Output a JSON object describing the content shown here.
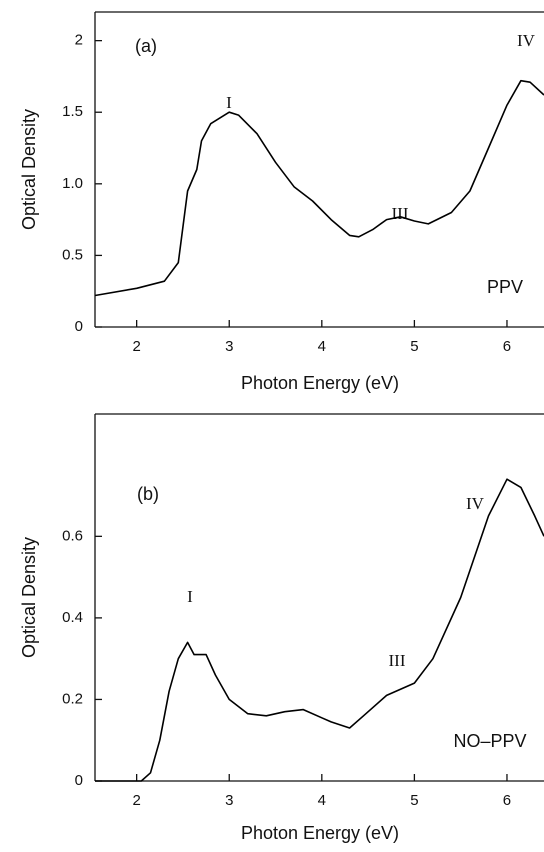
{
  "chart_data": [
    {
      "type": "line",
      "x_label": "Photon Energy (eV)",
      "y_label": "Optical Density",
      "xlim": [
        1.55,
        6.4
      ],
      "xticks": [
        2,
        3,
        4,
        5,
        6
      ],
      "ylim": [
        0,
        2.2
      ],
      "yticks": [
        0,
        0.5,
        {
          "value": 1,
          "label": "1.0"
        },
        1.5,
        2
      ],
      "annotations": [
        "(a)",
        "I",
        "III",
        "IV",
        "PPV"
      ],
      "series": [
        {
          "color": "#000000",
          "x": [
            1.55,
            2.0,
            2.3,
            2.45,
            2.52,
            2.55,
            2.65,
            2.7,
            2.8,
            3.0,
            3.1,
            3.3,
            3.5,
            3.7,
            3.9,
            4.1,
            4.3,
            4.4,
            4.55,
            4.7,
            4.85,
            5.0,
            5.15,
            5.4,
            5.6,
            5.8,
            6.0,
            6.15,
            6.25,
            6.4
          ],
          "values": [
            0.22,
            0.27,
            0.32,
            0.45,
            0.8,
            0.95,
            1.1,
            1.3,
            1.42,
            1.5,
            1.48,
            1.35,
            1.15,
            0.98,
            0.88,
            0.75,
            0.64,
            0.63,
            0.68,
            0.75,
            0.77,
            0.74,
            0.72,
            0.8,
            0.95,
            1.25,
            1.55,
            1.72,
            1.71,
            1.62
          ]
        }
      ]
    },
    {
      "type": "line",
      "x_label": "Photon Energy (eV)",
      "y_label": "Optical Density",
      "xlim": [
        1.55,
        6.4
      ],
      "xticks": [
        2,
        3,
        4,
        5,
        6
      ],
      "ylim": [
        0,
        0.9
      ],
      "yticks": [
        0,
        0.2,
        0.4,
        0.6
      ],
      "annotations": [
        "(b)",
        "I",
        "III",
        "IV",
        "NO–PPV"
      ],
      "series": [
        {
          "color": "#000000",
          "x": [
            1.55,
            2.05,
            2.15,
            2.25,
            2.35,
            2.45,
            2.55,
            2.62,
            2.75,
            2.85,
            3.0,
            3.2,
            3.4,
            3.6,
            3.8,
            4.0,
            4.1,
            4.3,
            4.45,
            4.7,
            5.0,
            5.2,
            5.5,
            5.8,
            6.0,
            6.15,
            6.3,
            6.4
          ],
          "values": [
            0,
            0,
            0.02,
            0.1,
            0.22,
            0.3,
            0.34,
            0.31,
            0.31,
            0.26,
            0.2,
            0.165,
            0.16,
            0.17,
            0.175,
            0.155,
            0.145,
            0.13,
            0.16,
            0.21,
            0.24,
            0.3,
            0.45,
            0.65,
            0.74,
            0.72,
            0.65,
            0.6
          ]
        }
      ]
    }
  ]
}
